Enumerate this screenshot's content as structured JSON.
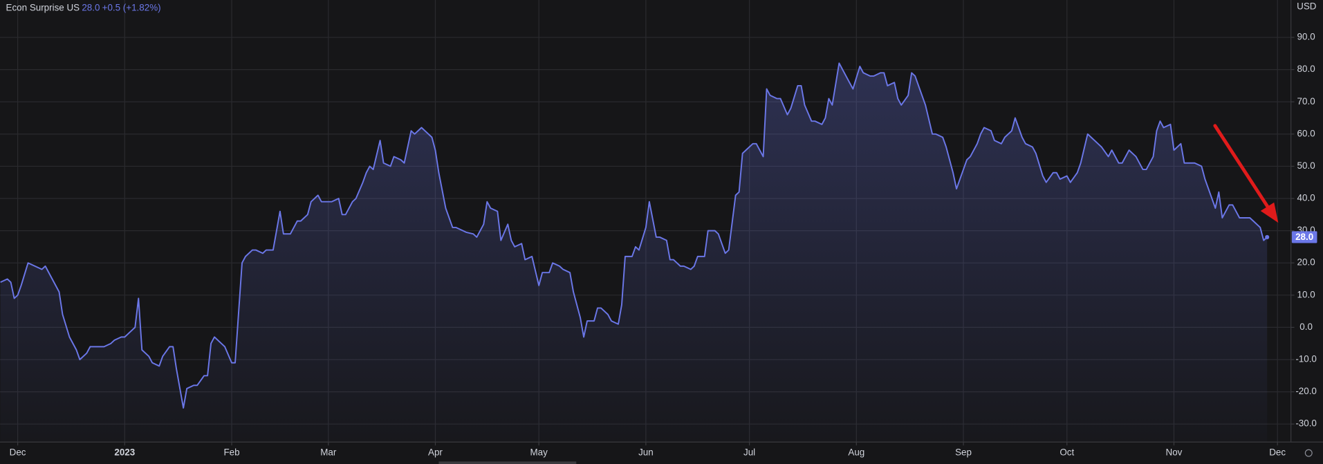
{
  "chart_data": {
    "type": "area",
    "title": "Econ Surprise US",
    "header_value": "28.0",
    "header_change": "+0.5 (+1.82%)",
    "currency": "USD",
    "color": "#6b77e8",
    "grid": true,
    "xlim": [
      -5.13,
      368.9
    ],
    "ylim": [
      -35.6,
      101.6
    ],
    "xticks": [
      {
        "value": 0,
        "label": "Dec"
      },
      {
        "value": 31,
        "label": "2023"
      },
      {
        "value": 62,
        "label": "Feb"
      },
      {
        "value": 90,
        "label": "Mar"
      },
      {
        "value": 121,
        "label": "Apr"
      },
      {
        "value": 151,
        "label": "May"
      },
      {
        "value": 182,
        "label": "Jun"
      },
      {
        "value": 212,
        "label": "Jul"
      },
      {
        "value": 243,
        "label": "Aug"
      },
      {
        "value": 274,
        "label": "Sep"
      },
      {
        "value": 304,
        "label": "Oct"
      },
      {
        "value": 335,
        "label": "Nov"
      },
      {
        "value": 365,
        "label": "Dec"
      }
    ],
    "yticks": [
      {
        "value": -30,
        "label": "-30.0"
      },
      {
        "value": -20,
        "label": "-20.0"
      },
      {
        "value": -10,
        "label": "-10.0"
      },
      {
        "value": 0,
        "label": "0.0"
      },
      {
        "value": 10,
        "label": "10.0"
      },
      {
        "value": 20,
        "label": "20.0"
      },
      {
        "value": 30,
        "label": "30.0"
      },
      {
        "value": 40,
        "label": "40.0"
      },
      {
        "value": 50,
        "label": "50.0"
      },
      {
        "value": 60,
        "label": "60.0"
      },
      {
        "value": 70,
        "label": "70.0"
      },
      {
        "value": 80,
        "label": "80.0"
      },
      {
        "value": 90,
        "label": "90.0"
      }
    ],
    "x": [
      -5,
      -3,
      -2,
      -1,
      0,
      1,
      3,
      5,
      7,
      8,
      10,
      12,
      13,
      15,
      17,
      18,
      20,
      21,
      23,
      25,
      27,
      28,
      30,
      31,
      33,
      34,
      35,
      36,
      38,
      39,
      41,
      42,
      44,
      45,
      46,
      48,
      49,
      51,
      52,
      54,
      55,
      56,
      57,
      59,
      60,
      62,
      63,
      65,
      66,
      68,
      69,
      71,
      72,
      74,
      76,
      77,
      79,
      81,
      82,
      84,
      85,
      87,
      88,
      90,
      91,
      93,
      94,
      95,
      97,
      98,
      100,
      101,
      102,
      103,
      105,
      106,
      108,
      109,
      111,
      112,
      114,
      115,
      117,
      118,
      120,
      121,
      122,
      124,
      126,
      127,
      129,
      130,
      132,
      133,
      135,
      136,
      137,
      139,
      140,
      142,
      143,
      144,
      146,
      147,
      149,
      151,
      152,
      154,
      155,
      157,
      158,
      160,
      161,
      163,
      164,
      165,
      167,
      168,
      169,
      171,
      172,
      174,
      175,
      176,
      178,
      179,
      180,
      182,
      183,
      185,
      186,
      188,
      189,
      190,
      192,
      193,
      195,
      196,
      197,
      199,
      200,
      202,
      203,
      205,
      206,
      208,
      209,
      210,
      211,
      213,
      214,
      216,
      217,
      218,
      220,
      221,
      223,
      224,
      226,
      227,
      228,
      230,
      231,
      233,
      234,
      235,
      236,
      238,
      239,
      241,
      242,
      244,
      245,
      247,
      248,
      250,
      251,
      252,
      254,
      255,
      256,
      258,
      259,
      260,
      262,
      263,
      265,
      266,
      268,
      269,
      271,
      272,
      273,
      275,
      276,
      278,
      279,
      280,
      282,
      283,
      285,
      286,
      288,
      289,
      291,
      292,
      294,
      295,
      297,
      298,
      300,
      301,
      302,
      304,
      305,
      307,
      308,
      310,
      311,
      313,
      314,
      316,
      317,
      319,
      320,
      322,
      323,
      324,
      326,
      327,
      329,
      330,
      331,
      332,
      334,
      335,
      337,
      338,
      340,
      341,
      343,
      344,
      345,
      347,
      348,
      349,
      351,
      352,
      354,
      355,
      357,
      358,
      360,
      361,
      362
    ],
    "values": [
      14,
      15,
      14,
      9,
      10,
      13,
      20,
      19,
      18,
      19,
      15,
      11,
      4,
      -3,
      -7,
      -10,
      -8,
      -6,
      -6,
      -6,
      -5,
      -4,
      -3,
      -3,
      -1,
      0,
      9,
      -7,
      -9,
      -11,
      -12,
      -9,
      -6,
      -6,
      -13,
      -25,
      -19,
      -18,
      -18,
      -15,
      -15,
      -5,
      -3,
      -5,
      -6,
      -11,
      -11,
      20,
      22,
      24,
      24,
      23,
      24,
      24,
      36,
      29,
      29,
      33,
      33,
      35,
      39,
      41,
      39,
      39,
      39,
      40,
      35,
      35,
      39,
      40,
      45,
      48,
      50,
      49,
      58,
      51,
      50,
      53,
      52,
      51,
      61,
      60,
      62,
      61,
      59,
      55,
      48,
      37,
      31,
      31,
      30,
      29.5,
      29,
      28,
      32,
      39,
      37,
      36,
      27,
      32,
      27,
      25,
      26,
      21,
      22,
      13,
      17,
      17,
      20,
      19,
      18,
      17,
      11,
      3,
      -3,
      2,
      2,
      6,
      6,
      4,
      2,
      1,
      7,
      22,
      22,
      25,
      24,
      31,
      39,
      28,
      28,
      27,
      21,
      21,
      19,
      19,
      18,
      19,
      22,
      22,
      30,
      30,
      29,
      23,
      24,
      41,
      42,
      54,
      55,
      57,
      57,
      53,
      74,
      72,
      71,
      71,
      66,
      68,
      75,
      75,
      69,
      64,
      64,
      63,
      65,
      71,
      69,
      82,
      80,
      76,
      74,
      81,
      79,
      78,
      78,
      79,
      79,
      75,
      76,
      71,
      69,
      72,
      79,
      78,
      72,
      69,
      60,
      60,
      59,
      56,
      48,
      43,
      46,
      52,
      53,
      57,
      60,
      62,
      61,
      58,
      57,
      59,
      61,
      65,
      59,
      57,
      56,
      54,
      47,
      45,
      48,
      48,
      46,
      47,
      45,
      48,
      51,
      60,
      59,
      57,
      56,
      53,
      55,
      51,
      51,
      55,
      54,
      53,
      49,
      49,
      53,
      61,
      64,
      62,
      63,
      55,
      57,
      51,
      51,
      51,
      50,
      46,
      43,
      37,
      42,
      34,
      38,
      38,
      34,
      34,
      34,
      33,
      31,
      27,
      28
    ]
  }
}
